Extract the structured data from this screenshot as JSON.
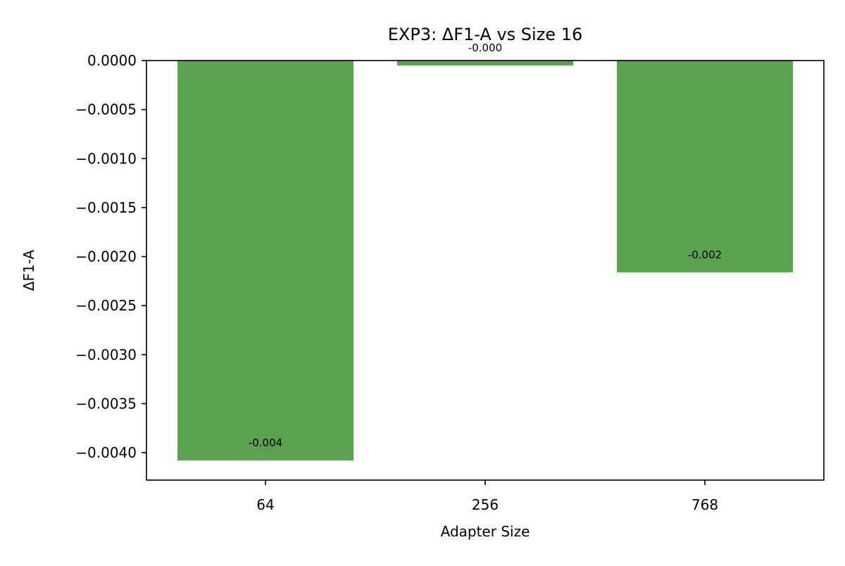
{
  "chart_data": {
    "type": "bar",
    "title": "EXP3: ΔF1-A vs Size 16",
    "xlabel": "Adapter Size",
    "ylabel": "ΔF1-A",
    "categories": [
      "64",
      "256",
      "768"
    ],
    "values": [
      -0.00408,
      -5e-05,
      -0.00216
    ],
    "data_labels": [
      "-0.004",
      "-0.000",
      "-0.002"
    ],
    "ylim": [
      -0.00428,
      0.0
    ],
    "y_ticks": [
      0.0,
      -0.0005,
      -0.001,
      -0.0015,
      -0.002,
      -0.0025,
      -0.003,
      -0.0035,
      -0.004
    ],
    "y_tick_labels": [
      "0.0000",
      "−0.0005",
      "−0.0010",
      "−0.0015",
      "−0.0020",
      "−0.0025",
      "−0.0030",
      "−0.0035",
      "−0.0040"
    ],
    "bar_color": "#5aa150",
    "grid": false,
    "legend": "none"
  }
}
